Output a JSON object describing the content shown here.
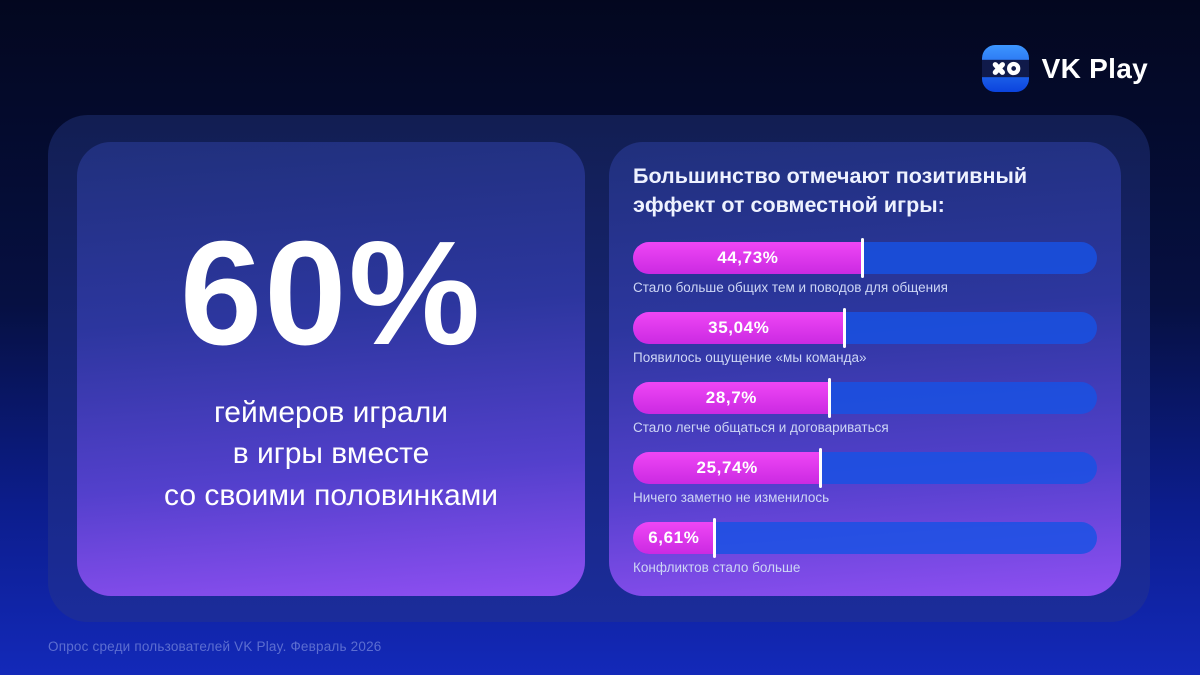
{
  "brand": {
    "name": "VK Play",
    "icon": "vkplay-xo-icon"
  },
  "left_card": {
    "stat_value": "60%",
    "stat_lines": [
      "геймеров играли",
      "в игры вместе",
      "со своими половинками"
    ]
  },
  "right_card": {
    "title_line1": "Большинство отмечают позитивный",
    "title_line2": "эффект от совместной игры:"
  },
  "footer": {
    "source": "Опрос среди пользователей VK Play. Февраль 2026"
  },
  "chart_data": {
    "type": "bar",
    "orientation": "horizontal",
    "title": "Большинство отмечают позитивный эффект от совместной игры:",
    "categories": [
      "Стало больше общих тем и поводов для общения",
      "Появилось ощущение «мы команда»",
      "Стало легче общаться и договариваться",
      "Ничего заметно не изменилось",
      "Конфликтов стало больше"
    ],
    "values": [
      44.73,
      35.04,
      28.7,
      25.74,
      6.61
    ],
    "value_labels": [
      "44,73%",
      "35,04%",
      "28,7%",
      "25,74%",
      "6,61%"
    ],
    "display_fill_pct": [
      49.5,
      45.6,
      42.4,
      40.6,
      17.6
    ],
    "xlim": [
      0,
      100
    ],
    "grid": false,
    "legend": false,
    "value_label_position": "inside-fill",
    "category_label_position": "below-bar"
  },
  "colors": {
    "bg-top": "#03071f",
    "bg-bottom": "#1329b9",
    "panel-top": "#121e52",
    "panel-bottom": "#1b2c9b",
    "card-top": "#20307c",
    "card-bottom": "#8f4ff2",
    "bar-pink-1": "#ef46f5",
    "bar-pink-2": "#cb2ae2",
    "bar-track": "rgba(23,82,228,0.82)",
    "caption": "#cdd6f5",
    "footer": "rgba(165,180,240,0.50)",
    "logo-grad-top": "#3d96ff",
    "logo-grad-bottom": "#0b43dd",
    "logo-band": "#101a4a"
  }
}
